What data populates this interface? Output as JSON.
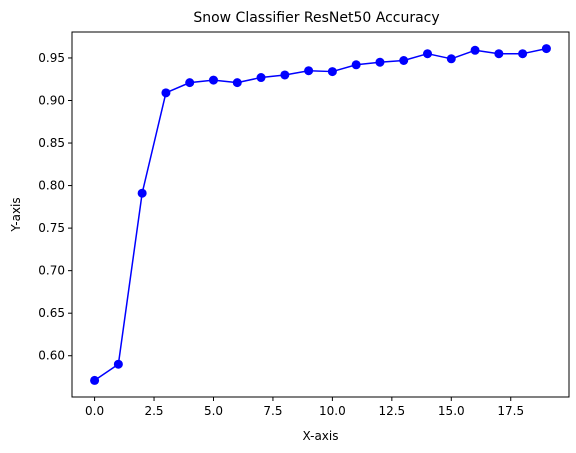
{
  "chart_data": {
    "type": "line",
    "title": "Snow Classifier ResNet50 Accuracy",
    "xlabel": "X-axis",
    "ylabel": "Y-axis",
    "x": [
      0,
      1,
      2,
      3,
      4,
      5,
      6,
      7,
      8,
      9,
      10,
      11,
      12,
      13,
      14,
      15,
      16,
      17,
      18,
      19
    ],
    "series": [
      {
        "values": [
          0.571,
          0.59,
          0.791,
          0.909,
          0.921,
          0.924,
          0.921,
          0.927,
          0.93,
          0.935,
          0.934,
          0.942,
          0.945,
          0.947,
          0.955,
          0.949,
          0.959,
          0.955,
          0.955,
          0.961
        ],
        "color": "#0000ff",
        "marker": "circle"
      }
    ],
    "xlim": [
      -0.95,
      19.95
    ],
    "ylim": [
      0.5515,
      0.9805
    ],
    "xticks": [
      0.0,
      2.5,
      5.0,
      7.5,
      10.0,
      12.5,
      15.0,
      17.5
    ],
    "xtick_labels": [
      "0.0",
      "2.5",
      "5.0",
      "7.5",
      "10.0",
      "12.5",
      "15.0",
      "17.5"
    ],
    "yticks": [
      0.6,
      0.65,
      0.7,
      0.75,
      0.8,
      0.85,
      0.9,
      0.95
    ],
    "ytick_labels": [
      "0.60",
      "0.65",
      "0.70",
      "0.75",
      "0.80",
      "0.85",
      "0.90",
      "0.95"
    ],
    "grid": false,
    "legend": null
  }
}
